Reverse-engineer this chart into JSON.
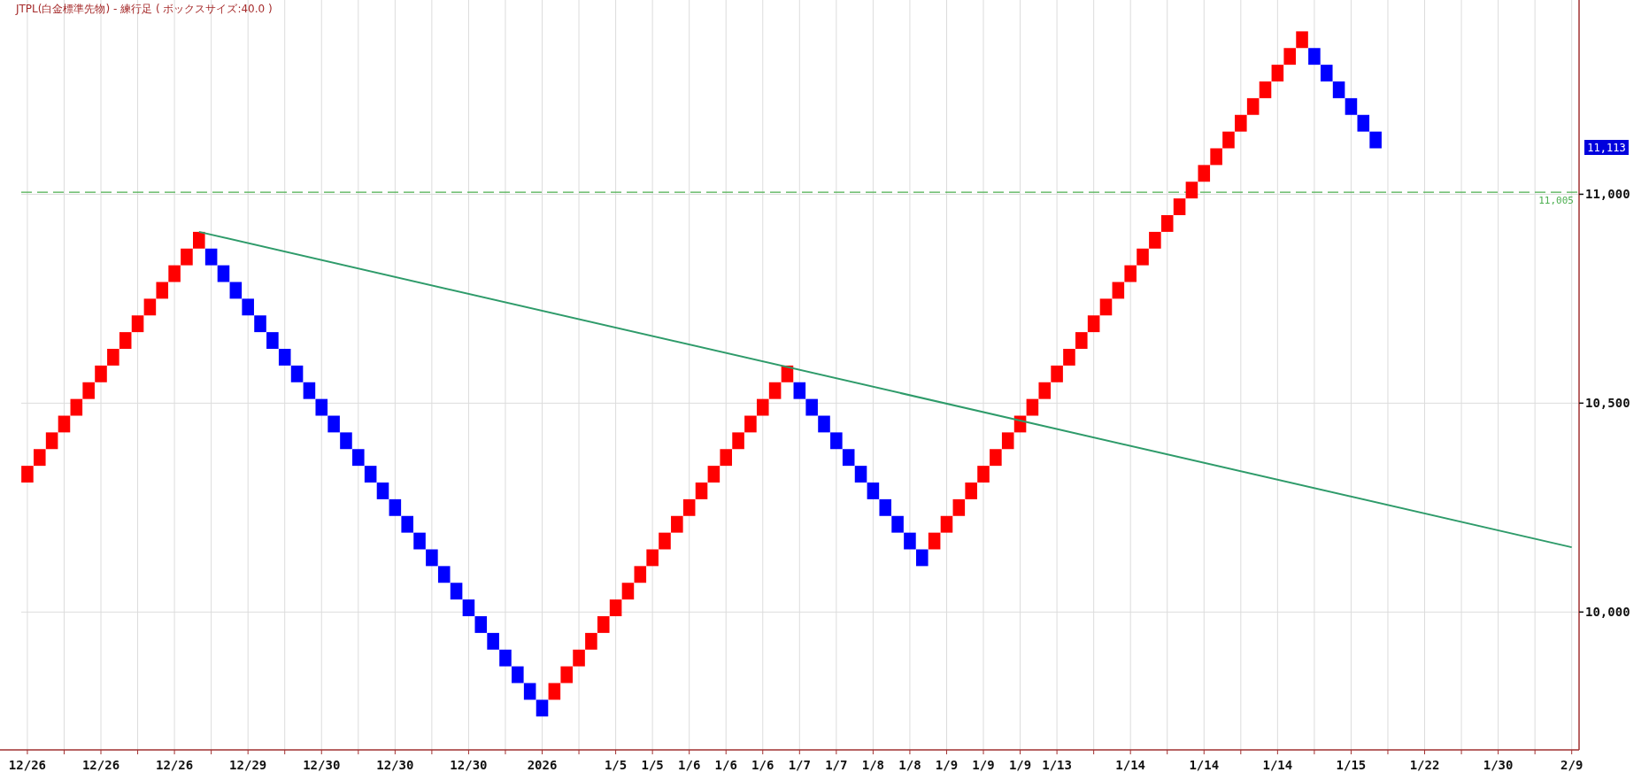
{
  "chart_data": {
    "type": "bar",
    "title": "JTPL(白金標準先物) - 練行足 ( ボックスサイズ:40.0 )",
    "categories": [
      "12/26",
      null,
      null,
      null,
      null,
      null,
      "12/26",
      null,
      null,
      null,
      null,
      null,
      "12/26",
      null,
      null,
      null,
      null,
      null,
      "12/29",
      null,
      null,
      null,
      null,
      null,
      "12/30",
      null,
      null,
      null,
      null,
      null,
      "12/30",
      null,
      null,
      null,
      null,
      null,
      "12/30",
      null,
      null,
      null,
      null,
      null,
      "2026",
      null,
      null,
      null,
      null,
      null,
      "1/5",
      null,
      null,
      "1/5",
      null,
      null,
      "1/6",
      null,
      null,
      "1/6",
      null,
      null,
      "1/6",
      null,
      null,
      "1/7",
      null,
      null,
      "1/7",
      null,
      null,
      "1/8",
      null,
      null,
      "1/8",
      null,
      null,
      "1/9",
      null,
      null,
      "1/9",
      null,
      null,
      "1/9",
      null,
      null,
      "1/13",
      null,
      null,
      null,
      null,
      null,
      "1/14",
      null,
      null,
      null,
      null,
      null,
      "1/14",
      null,
      null,
      null,
      null,
      null,
      "1/14",
      null,
      null,
      null,
      null,
      null,
      "1/15",
      null,
      null,
      null,
      null,
      null,
      "1/22",
      null,
      null,
      null,
      null,
      null,
      "1/30",
      null,
      null,
      null,
      null,
      null,
      "2/9"
    ],
    "ylim": [
      9670,
      11465
    ],
    "yticks": [
      {
        "value": 10000,
        "label": "10,000"
      },
      {
        "value": 10500,
        "label": "10,500"
      },
      {
        "value": 11000,
        "label": "11,000"
      }
    ],
    "grid": true,
    "series": [
      {
        "base": [
          10310,
          10350,
          10390,
          10430,
          10470,
          10510,
          10550,
          10590,
          10630,
          10670,
          10710,
          10750,
          10790,
          10830,
          10870,
          10830,
          10790,
          10750,
          10710,
          10670,
          10630,
          10590,
          10550,
          10510,
          10470,
          10430,
          10390,
          10350,
          10310,
          10270,
          10230,
          10190,
          10150,
          10110,
          10070,
          10030,
          9990,
          9950,
          9910,
          9870,
          9830,
          9790,
          9750,
          9790,
          9830,
          9870,
          9910,
          9950,
          9990,
          10030,
          10070,
          10110,
          10150,
          10190,
          10230,
          10270,
          10310,
          10350,
          10390,
          10430,
          10470,
          10510,
          10550,
          10510,
          10470,
          10430,
          10390,
          10350,
          10310,
          10270,
          10230,
          10190,
          10150,
          10110,
          10150,
          10190,
          10230,
          10270,
          10310,
          10350,
          10390,
          10430,
          10470,
          10510,
          10550,
          10590,
          10630,
          10670,
          10710,
          10750,
          10790,
          10830,
          10870,
          10910,
          10950,
          10990,
          11030,
          11070,
          11110,
          11150,
          11190,
          11230,
          11270,
          11310,
          11350,
          11310,
          11270,
          11230,
          11190,
          11150,
          11110,
          null,
          null,
          null,
          null,
          null,
          null,
          null,
          null,
          null,
          null,
          null,
          null,
          null,
          null,
          null,
          null
        ],
        "values": [
          40,
          40,
          40,
          40,
          40,
          40,
          40,
          40,
          40,
          40,
          40,
          40,
          40,
          40,
          40,
          40,
          40,
          40,
          40,
          40,
          40,
          40,
          40,
          40,
          40,
          40,
          40,
          40,
          40,
          40,
          40,
          40,
          40,
          40,
          40,
          40,
          40,
          40,
          40,
          40,
          40,
          40,
          40,
          40,
          40,
          40,
          40,
          40,
          40,
          40,
          40,
          40,
          40,
          40,
          40,
          40,
          40,
          40,
          40,
          40,
          40,
          40,
          40,
          40,
          40,
          40,
          40,
          40,
          40,
          40,
          40,
          40,
          40,
          40,
          40,
          40,
          40,
          40,
          40,
          40,
          40,
          40,
          40,
          40,
          40,
          40,
          40,
          40,
          40,
          40,
          40,
          40,
          40,
          40,
          40,
          40,
          40,
          40,
          40,
          40,
          40,
          40,
          40,
          40,
          40,
          40,
          40,
          40,
          40,
          40,
          40,
          null,
          null,
          null,
          null,
          null,
          null,
          null,
          null,
          null,
          null,
          null,
          null,
          null,
          null,
          null,
          null
        ],
        "colors": [
          "#ff0000",
          "#ff0000",
          "#ff0000",
          "#ff0000",
          "#ff0000",
          "#ff0000",
          "#ff0000",
          "#ff0000",
          "#ff0000",
          "#ff0000",
          "#ff0000",
          "#ff0000",
          "#ff0000",
          "#ff0000",
          "#ff0000",
          "#0000ff",
          "#0000ff",
          "#0000ff",
          "#0000ff",
          "#0000ff",
          "#0000ff",
          "#0000ff",
          "#0000ff",
          "#0000ff",
          "#0000ff",
          "#0000ff",
          "#0000ff",
          "#0000ff",
          "#0000ff",
          "#0000ff",
          "#0000ff",
          "#0000ff",
          "#0000ff",
          "#0000ff",
          "#0000ff",
          "#0000ff",
          "#0000ff",
          "#0000ff",
          "#0000ff",
          "#0000ff",
          "#0000ff",
          "#0000ff",
          "#0000ff",
          "#ff0000",
          "#ff0000",
          "#ff0000",
          "#ff0000",
          "#ff0000",
          "#ff0000",
          "#ff0000",
          "#ff0000",
          "#ff0000",
          "#ff0000",
          "#ff0000",
          "#ff0000",
          "#ff0000",
          "#ff0000",
          "#ff0000",
          "#ff0000",
          "#ff0000",
          "#ff0000",
          "#ff0000",
          "#ff0000",
          "#0000ff",
          "#0000ff",
          "#0000ff",
          "#0000ff",
          "#0000ff",
          "#0000ff",
          "#0000ff",
          "#0000ff",
          "#0000ff",
          "#0000ff",
          "#0000ff",
          "#ff0000",
          "#ff0000",
          "#ff0000",
          "#ff0000",
          "#ff0000",
          "#ff0000",
          "#ff0000",
          "#ff0000",
          "#ff0000",
          "#ff0000",
          "#ff0000",
          "#ff0000",
          "#ff0000",
          "#ff0000",
          "#ff0000",
          "#ff0000",
          "#ff0000",
          "#ff0000",
          "#ff0000",
          "#ff0000",
          "#ff0000",
          "#ff0000",
          "#ff0000",
          "#ff0000",
          "#ff0000",
          "#ff0000",
          "#ff0000",
          "#ff0000",
          "#ff0000",
          "#ff0000",
          "#ff0000",
          "#0000ff",
          "#0000ff",
          "#0000ff",
          "#0000ff",
          "#0000ff",
          "#0000ff",
          null,
          null,
          null,
          null,
          null,
          null,
          null,
          null,
          null,
          null,
          null,
          null,
          null,
          null,
          null,
          null
        ]
      },
      {
        "type": "line",
        "color": "#2e9b6a",
        "values": [
          null,
          null,
          null,
          null,
          null,
          null,
          null,
          null,
          null,
          null,
          null,
          null,
          null,
          null,
          10910,
          null,
          null,
          null,
          null,
          null,
          null,
          null,
          null,
          null,
          null,
          null,
          null,
          null,
          null,
          null,
          null,
          null,
          null,
          null,
          null,
          null,
          null,
          null,
          null,
          null,
          null,
          null,
          null,
          null,
          null,
          null,
          null,
          null,
          null,
          null,
          null,
          null,
          null,
          null,
          null,
          null,
          null,
          null,
          null,
          null,
          null,
          null,
          null,
          null,
          null,
          null,
          null,
          null,
          null,
          null,
          null,
          null,
          null,
          null,
          null,
          null,
          null,
          null,
          null,
          null,
          null,
          null,
          null,
          null,
          null,
          null,
          null,
          null,
          null,
          null,
          null,
          null,
          null,
          null,
          null,
          null,
          null,
          null,
          null,
          null,
          null,
          null,
          null,
          null,
          null,
          null,
          null,
          null,
          null,
          null,
          null,
          null,
          null,
          null,
          null,
          null,
          null,
          null,
          null,
          null,
          null,
          null,
          null,
          null,
          null,
          null,
          10155
        ]
      }
    ],
    "ref_lines": [
      {
        "axis": "y",
        "value": 11005,
        "label": "11,005",
        "color": "#4caf50",
        "line_style": "dashed"
      }
    ],
    "annotations": [
      "11,113"
    ]
  }
}
